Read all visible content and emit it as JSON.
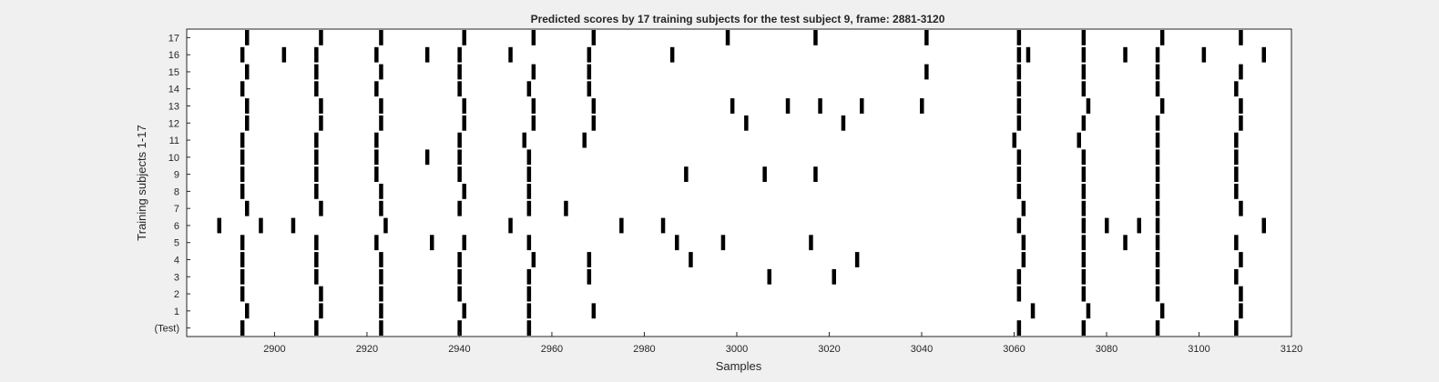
{
  "chart_data": {
    "type": "raster",
    "title": "Predicted scores by 17 training subjects for the test subject 9, frame: 2881-3120",
    "xlabel": "Samples",
    "ylabel": "Training subjects 1-17",
    "xlim": [
      2881,
      3120
    ],
    "xticks": [
      2900,
      2920,
      2940,
      2960,
      2980,
      3000,
      3020,
      3040,
      3060,
      3080,
      3100,
      3120
    ],
    "row_labels": [
      "(Test)",
      "1",
      "2",
      "3",
      "4",
      "5",
      "6",
      "7",
      "8",
      "9",
      "10",
      "11",
      "12",
      "13",
      "14",
      "15",
      "16",
      "17"
    ],
    "mark_color": "#000000",
    "grid": false,
    "rows": [
      {
        "label": "(Test)",
        "events": [
          2893,
          2909,
          2923,
          2940,
          2955,
          3061,
          3075,
          3091,
          3108
        ]
      },
      {
        "label": "1",
        "events": [
          2894,
          2910,
          2923,
          2941,
          2955,
          2969,
          3064,
          3076,
          3092,
          3109
        ]
      },
      {
        "label": "2",
        "events": [
          2893,
          2910,
          2923,
          2940,
          2955,
          3061,
          3075,
          3091,
          3109
        ]
      },
      {
        "label": "3",
        "events": [
          2893,
          2909,
          2923,
          2940,
          2955,
          2968,
          3007,
          3021,
          3061,
          3075,
          3091,
          3108
        ]
      },
      {
        "label": "4",
        "events": [
          2893,
          2909,
          2923,
          2940,
          2956,
          2968,
          2990,
          3026,
          3062,
          3075,
          3091,
          3109
        ]
      },
      {
        "label": "5",
        "events": [
          2893,
          2909,
          2922,
          2934,
          2941,
          2955,
          2987,
          2997,
          3016,
          3062,
          3075,
          3084,
          3091,
          3108
        ]
      },
      {
        "label": "6",
        "events": [
          2888,
          2897,
          2904,
          2924,
          2951,
          2975,
          2984,
          3061,
          3075,
          3080,
          3087,
          3091,
          3114
        ]
      },
      {
        "label": "7",
        "events": [
          2894,
          2910,
          2923,
          2940,
          2955,
          2963,
          3062,
          3075,
          3091,
          3109
        ]
      },
      {
        "label": "8",
        "events": [
          2893,
          2909,
          2923,
          2941,
          2955,
          3061,
          3075,
          3091,
          3108
        ]
      },
      {
        "label": "9",
        "events": [
          2893,
          2909,
          2922,
          2940,
          2955,
          2989,
          3006,
          3017,
          3061,
          3075,
          3091,
          3108
        ]
      },
      {
        "label": "10",
        "events": [
          2893,
          2909,
          2922,
          2933,
          2940,
          2955,
          3061,
          3075,
          3091,
          3108
        ]
      },
      {
        "label": "11",
        "events": [
          2893,
          2909,
          2922,
          2940,
          2954,
          2967,
          3060,
          3074,
          3091,
          3108
        ]
      },
      {
        "label": "12",
        "events": [
          2894,
          2910,
          2923,
          2941,
          2956,
          2969,
          3002,
          3023,
          3061,
          3075,
          3091,
          3109
        ]
      },
      {
        "label": "13",
        "events": [
          2894,
          2910,
          2923,
          2941,
          2956,
          2969,
          2999,
          3011,
          3018,
          3027,
          3040,
          3061,
          3076,
          3092,
          3109
        ]
      },
      {
        "label": "14",
        "events": [
          2893,
          2909,
          2922,
          2940,
          2955,
          2968,
          3061,
          3075,
          3091,
          3108
        ]
      },
      {
        "label": "15",
        "events": [
          2894,
          2909,
          2923,
          2940,
          2956,
          2968,
          3041,
          3061,
          3075,
          3091,
          3109
        ]
      },
      {
        "label": "16",
        "events": [
          2893,
          2902,
          2909,
          2922,
          2933,
          2940,
          2951,
          2968,
          2986,
          3061,
          3063,
          3075,
          3084,
          3091,
          3101,
          3114
        ]
      },
      {
        "label": "17",
        "events": [
          2894,
          2910,
          2923,
          2941,
          2956,
          2969,
          2998,
          3017,
          3041,
          3061,
          3075,
          3092,
          3109
        ]
      }
    ]
  }
}
